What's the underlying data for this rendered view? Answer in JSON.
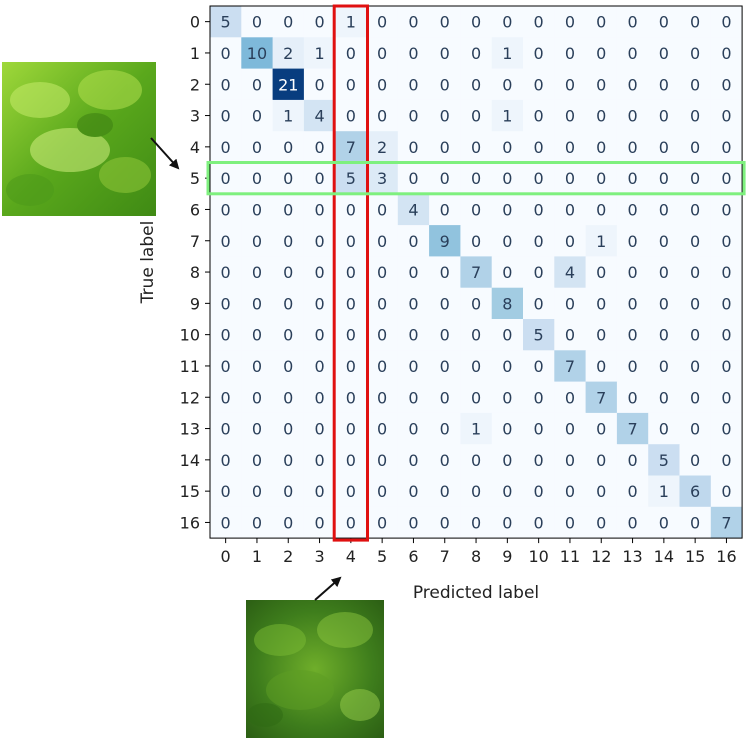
{
  "chart_data": {
    "type": "heatmap",
    "title": "",
    "xlabel": "Predicted label",
    "ylabel": "True label",
    "x_categories": [
      "0",
      "1",
      "2",
      "3",
      "4",
      "5",
      "6",
      "7",
      "8",
      "9",
      "10",
      "11",
      "12",
      "13",
      "14",
      "15",
      "16"
    ],
    "y_categories": [
      "0",
      "1",
      "2",
      "3",
      "4",
      "5",
      "6",
      "7",
      "8",
      "9",
      "10",
      "11",
      "12",
      "13",
      "14",
      "15",
      "16"
    ],
    "values": [
      [
        5,
        0,
        0,
        0,
        1,
        0,
        0,
        0,
        0,
        0,
        0,
        0,
        0,
        0,
        0,
        0,
        0
      ],
      [
        0,
        10,
        2,
        1,
        0,
        0,
        0,
        0,
        0,
        1,
        0,
        0,
        0,
        0,
        0,
        0,
        0
      ],
      [
        0,
        0,
        21,
        0,
        0,
        0,
        0,
        0,
        0,
        0,
        0,
        0,
        0,
        0,
        0,
        0,
        0
      ],
      [
        0,
        0,
        1,
        4,
        0,
        0,
        0,
        0,
        0,
        1,
        0,
        0,
        0,
        0,
        0,
        0,
        0
      ],
      [
        0,
        0,
        0,
        0,
        7,
        2,
        0,
        0,
        0,
        0,
        0,
        0,
        0,
        0,
        0,
        0,
        0
      ],
      [
        0,
        0,
        0,
        0,
        5,
        3,
        0,
        0,
        0,
        0,
        0,
        0,
        0,
        0,
        0,
        0,
        0
      ],
      [
        0,
        0,
        0,
        0,
        0,
        0,
        4,
        0,
        0,
        0,
        0,
        0,
        0,
        0,
        0,
        0,
        0
      ],
      [
        0,
        0,
        0,
        0,
        0,
        0,
        0,
        9,
        0,
        0,
        0,
        0,
        1,
        0,
        0,
        0,
        0
      ],
      [
        0,
        0,
        0,
        0,
        0,
        0,
        0,
        0,
        7,
        0,
        0,
        4,
        0,
        0,
        0,
        0,
        0
      ],
      [
        0,
        0,
        0,
        0,
        0,
        0,
        0,
        0,
        0,
        8,
        0,
        0,
        0,
        0,
        0,
        0,
        0
      ],
      [
        0,
        0,
        0,
        0,
        0,
        0,
        0,
        0,
        0,
        0,
        5,
        0,
        0,
        0,
        0,
        0,
        0
      ],
      [
        0,
        0,
        0,
        0,
        0,
        0,
        0,
        0,
        0,
        0,
        0,
        7,
        0,
        0,
        0,
        0,
        0
      ],
      [
        0,
        0,
        0,
        0,
        0,
        0,
        0,
        0,
        0,
        0,
        0,
        0,
        7,
        0,
        0,
        0,
        0
      ],
      [
        0,
        0,
        0,
        0,
        0,
        0,
        0,
        0,
        1,
        0,
        0,
        0,
        0,
        7,
        0,
        0,
        0
      ],
      [
        0,
        0,
        0,
        0,
        0,
        0,
        0,
        0,
        0,
        0,
        0,
        0,
        0,
        0,
        5,
        0,
        0
      ],
      [
        0,
        0,
        0,
        0,
        0,
        0,
        0,
        0,
        0,
        0,
        0,
        0,
        0,
        0,
        1,
        6,
        0
      ],
      [
        0,
        0,
        0,
        0,
        0,
        0,
        0,
        0,
        0,
        0,
        0,
        0,
        0,
        0,
        0,
        0,
        7
      ]
    ],
    "value_range": [
      0,
      21
    ],
    "colormap": "Blues",
    "highlights": [
      {
        "kind": "column",
        "index": 4,
        "color": "#e01010"
      },
      {
        "kind": "row",
        "index": 5,
        "color": "#7ef07e"
      }
    ]
  },
  "images": [
    {
      "name": "lettuce-photo-true-5",
      "points_to_row": "5"
    },
    {
      "name": "lettuce-photo-predicted-4",
      "points_to_column": "4"
    }
  ]
}
